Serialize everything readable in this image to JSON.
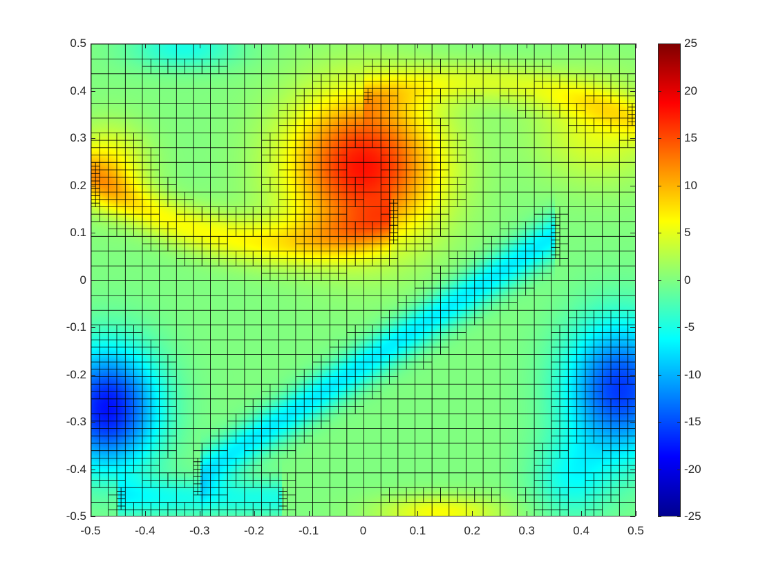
{
  "chart_data": {
    "type": "heatmap",
    "title": "",
    "xlabel": "",
    "ylabel": "",
    "xlim": [
      -0.5,
      0.5
    ],
    "ylim": [
      -0.5,
      0.5
    ],
    "x_ticks": [
      "-0.5",
      "-0.4",
      "-0.3",
      "-0.2",
      "-0.1",
      "0",
      "0.1",
      "0.2",
      "0.3",
      "0.4",
      "0.5"
    ],
    "y_ticks": [
      "0.5",
      "0.4",
      "0.3",
      "0.2",
      "0.1",
      "0",
      "-0.1",
      "-0.2",
      "-0.3",
      "-0.4",
      "-0.5"
    ],
    "colorbar": {
      "range": [
        -25,
        25
      ],
      "colormap": "jet",
      "ticks": [
        "25",
        "20",
        "15",
        "10",
        "5",
        "0",
        "-5",
        "-10",
        "-15",
        "-20",
        "-25"
      ]
    },
    "features": [
      {
        "kind": "max",
        "x": 0.0,
        "y": 0.24,
        "value": 18
      },
      {
        "kind": "min",
        "x": -0.47,
        "y": -0.27,
        "value": -18
      },
      {
        "kind": "min",
        "x": 0.47,
        "y": -0.23,
        "value": -16
      }
    ],
    "overlay": "adaptive quadtree mesh (black cell outlines)"
  },
  "colors": {
    "axis": "#262626",
    "mesh_line": "#000000"
  }
}
